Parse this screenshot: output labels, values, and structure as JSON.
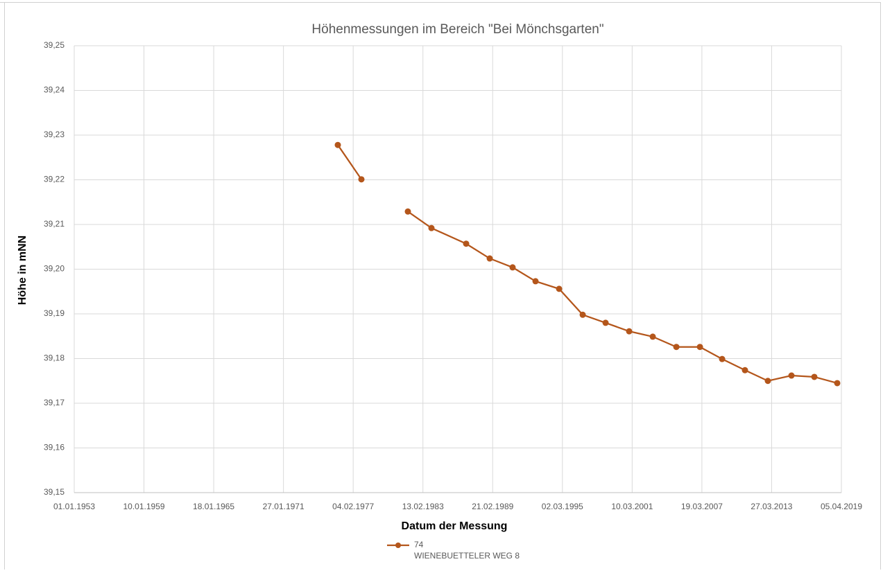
{
  "chart_data": {
    "type": "line",
    "title": "Höhenmessungen im Bereich \"Bei Mönchsgarten\"",
    "x_label": "Datum der Messung",
    "y_label": "Höhe in mNN",
    "x": [
      27675,
      28419,
      29150,
      29885,
      30629,
      31723,
      32467,
      33189,
      33912,
      34656,
      35400,
      36122,
      36866,
      37610,
      38354,
      39098,
      39798,
      40519,
      41241,
      41985,
      42707,
      43429
    ],
    "series": [
      {
        "name": "74",
        "color": "#b4561b",
        "values": [
          39.2278,
          39.2201,
          null,
          39.2129,
          39.2092,
          39.2057,
          39.2024,
          39.2004,
          39.1973,
          39.1956,
          39.1898,
          39.188,
          39.1861,
          39.1849,
          39.1826,
          39.1826,
          39.1799,
          39.1774,
          39.175,
          39.1762,
          39.1759,
          39.1745
        ]
      }
    ],
    "legend_note": "WIENEBUETTELER WEG 8",
    "legend": "bottom",
    "grid": true,
    "xlim": [
      19360,
      43560
    ],
    "xticks": [
      {
        "value": 19360,
        "label": "01.01.1953"
      },
      {
        "value": 21560,
        "label": "10.01.1959"
      },
      {
        "value": 23760,
        "label": "18.01.1965"
      },
      {
        "value": 25960,
        "label": "27.01.1971"
      },
      {
        "value": 28160,
        "label": "04.02.1977"
      },
      {
        "value": 30360,
        "label": "13.02.1983"
      },
      {
        "value": 32560,
        "label": "21.02.1989"
      },
      {
        "value": 34760,
        "label": "02.03.1995"
      },
      {
        "value": 36960,
        "label": "10.03.2001"
      },
      {
        "value": 39160,
        "label": "19.03.2007"
      },
      {
        "value": 41360,
        "label": "27.03.2013"
      },
      {
        "value": 43560,
        "label": "05.04.2019"
      }
    ],
    "ylim": [
      39.15,
      39.25
    ],
    "yticks": [
      {
        "value": 39.15,
        "label": "39,15"
      },
      {
        "value": 39.16,
        "label": "39,16"
      },
      {
        "value": 39.17,
        "label": "39,17"
      },
      {
        "value": 39.18,
        "label": "39,18"
      },
      {
        "value": 39.19,
        "label": "39,19"
      },
      {
        "value": 39.2,
        "label": "39,20"
      },
      {
        "value": 39.21,
        "label": "39,21"
      },
      {
        "value": 39.22,
        "label": "39,22"
      },
      {
        "value": 39.23,
        "label": "39,23"
      },
      {
        "value": 39.24,
        "label": "39,24"
      },
      {
        "value": 39.25,
        "label": "39,25"
      }
    ]
  }
}
